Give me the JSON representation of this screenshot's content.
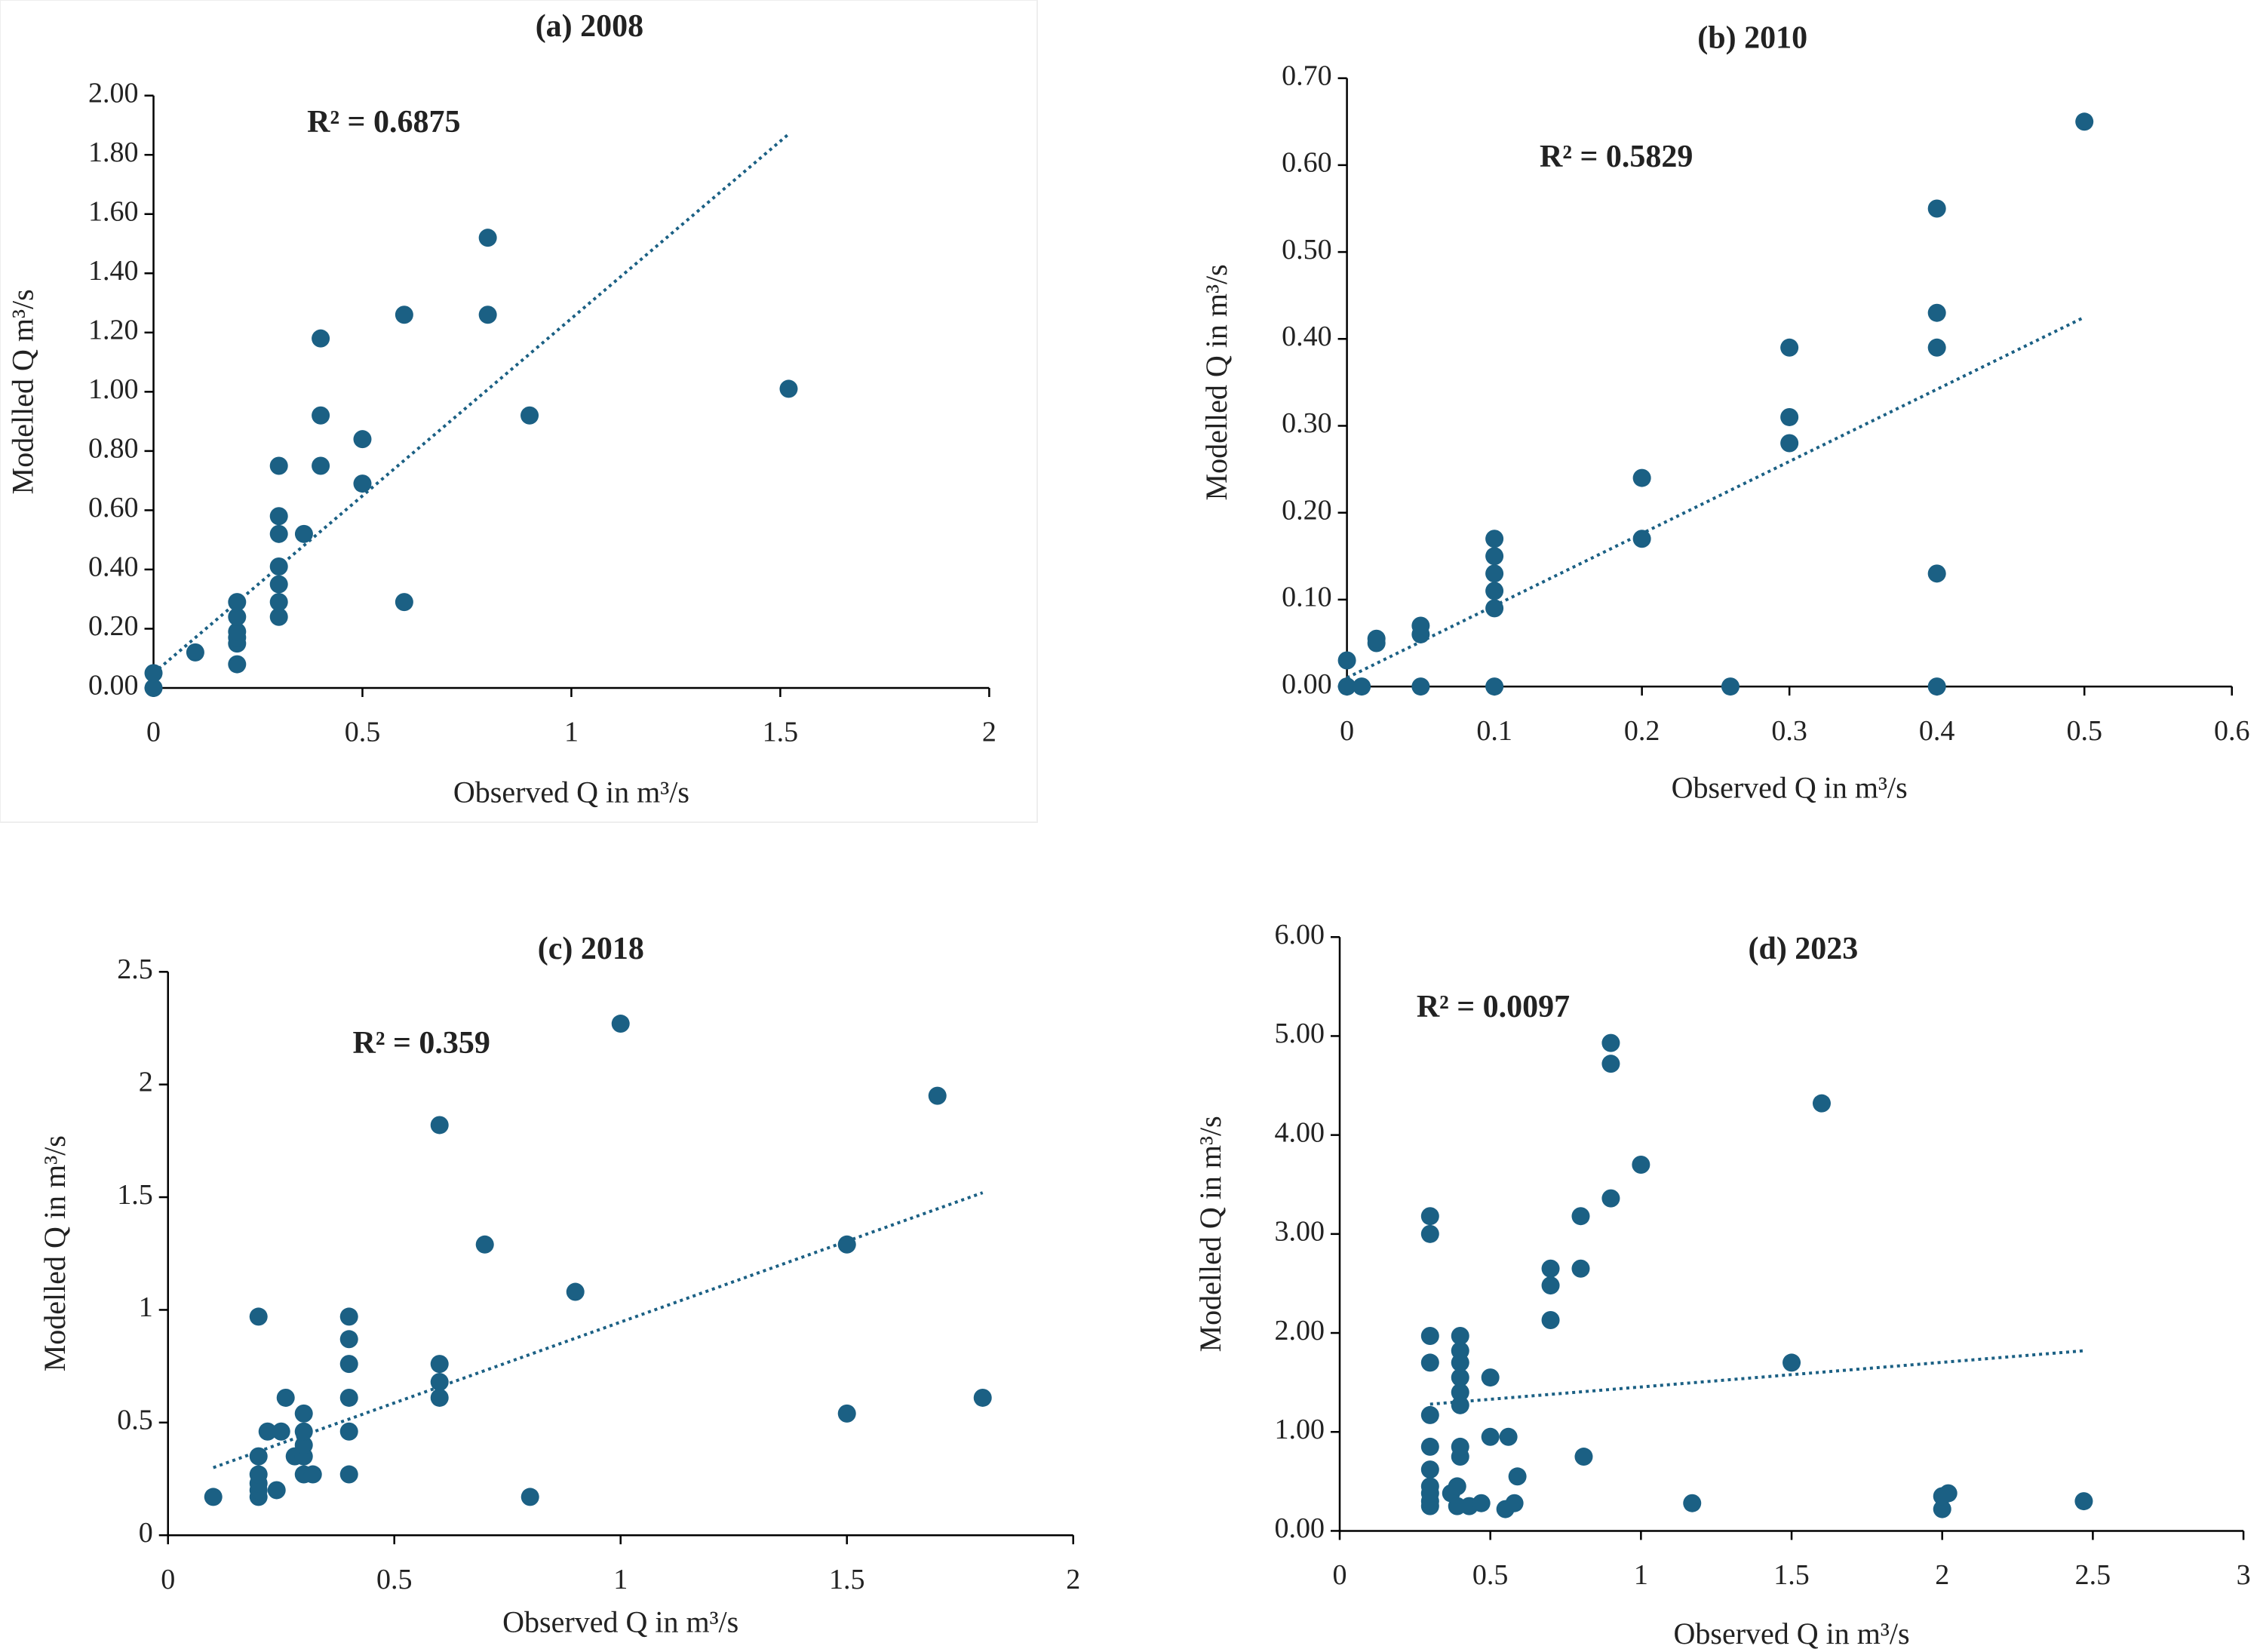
{
  "chart_data": [
    {
      "type": "scatter",
      "title": "(a) 2008",
      "annotation": "R² = 0.6875",
      "xlabel": "Observed Q in m³/s",
      "ylabel": "Modelled Q m³/s",
      "color": "#1b6084",
      "x": [
        0,
        0,
        0.1,
        0.2,
        0.2,
        0.2,
        0.2,
        0.2,
        0.2,
        0.3,
        0.3,
        0.3,
        0.3,
        0.3,
        0.3,
        0.3,
        0.36,
        0.4,
        0.4,
        0.4,
        0.5,
        0.5,
        0.6,
        0.6,
        0.8,
        0.8,
        0.9,
        1.52
      ],
      "y": [
        0,
        0.05,
        0.12,
        0.08,
        0.15,
        0.17,
        0.19,
        0.24,
        0.29,
        0.24,
        0.29,
        0.35,
        0.41,
        0.52,
        0.58,
        0.75,
        0.52,
        0.75,
        0.92,
        1.18,
        0.69,
        0.84,
        0.29,
        1.26,
        1.26,
        1.52,
        0.92,
        1.01
      ],
      "trendline": {
        "x": [
          0,
          1.52
        ],
        "y": [
          0.05,
          1.87
        ]
      },
      "xlim": [
        0,
        2
      ],
      "ylim": [
        0,
        2
      ],
      "xticks": [
        0,
        0.5,
        1,
        1.5,
        2
      ],
      "yticks": [
        {
          "value": 0,
          "label": "0.00"
        },
        {
          "value": 0.2,
          "label": "0.20"
        },
        {
          "value": 0.4,
          "label": "0.40"
        },
        {
          "value": 0.6,
          "label": "0.60"
        },
        {
          "value": 0.8,
          "label": "0.80"
        },
        {
          "value": 1,
          "label": "1.00"
        },
        {
          "value": 1.2,
          "label": "1.20"
        },
        {
          "value": 1.4,
          "label": "1.40"
        },
        {
          "value": 1.6,
          "label": "1.60"
        },
        {
          "value": 1.8,
          "label": "1.80"
        },
        {
          "value": 2,
          "label": "2.00"
        }
      ]
    },
    {
      "type": "scatter",
      "title": "(b) 2010",
      "annotation": "R² = 0.5829",
      "xlabel": "Observed Q in m³/s",
      "ylabel": "Modelled Q in m³/s",
      "color": "#1b6084",
      "x": [
        0,
        0,
        0.01,
        0.02,
        0.02,
        0.05,
        0.05,
        0.05,
        0.1,
        0.1,
        0.1,
        0.1,
        0.1,
        0.1,
        0.2,
        0.2,
        0.26,
        0.3,
        0.3,
        0.3,
        0.4,
        0.4,
        0.4,
        0.4,
        0.4,
        0.5
      ],
      "y": [
        0,
        0.03,
        0,
        0.05,
        0.055,
        0,
        0.06,
        0.07,
        0,
        0.09,
        0.11,
        0.13,
        0.15,
        0.17,
        0.17,
        0.24,
        0,
        0.28,
        0.31,
        0.39,
        0,
        0.13,
        0.39,
        0.43,
        0.55,
        0.65
      ],
      "trendline": {
        "x": [
          0,
          0.5
        ],
        "y": [
          0.01,
          0.425
        ]
      },
      "xlim": [
        0,
        0.6
      ],
      "ylim": [
        0,
        0.7
      ],
      "xticks": [
        0,
        0.1,
        0.2,
        0.3,
        0.4,
        0.5,
        0.6
      ],
      "yticks": [
        {
          "value": 0,
          "label": "0.00"
        },
        {
          "value": 0.1,
          "label": "0.10"
        },
        {
          "value": 0.2,
          "label": "0.20"
        },
        {
          "value": 0.3,
          "label": "0.30"
        },
        {
          "value": 0.4,
          "label": "0.40"
        },
        {
          "value": 0.5,
          "label": "0.50"
        },
        {
          "value": 0.6,
          "label": "0.60"
        },
        {
          "value": 0.7,
          "label": "0.70"
        }
      ]
    },
    {
      "type": "scatter",
      "title": "(c) 2018",
      "annotation": "R² = 0.359",
      "xlabel": "Observed Q in m³/s",
      "ylabel": "Modelled Q in m³/s",
      "color": "#1b6084",
      "x": [
        0.1,
        0.2,
        0.2,
        0.2,
        0.2,
        0.2,
        0.2,
        0.22,
        0.24,
        0.25,
        0.26,
        0.28,
        0.3,
        0.3,
        0.3,
        0.3,
        0.3,
        0.32,
        0.4,
        0.4,
        0.4,
        0.4,
        0.4,
        0.4,
        0.6,
        0.6,
        0.6,
        0.6,
        0.7,
        0.8,
        0.9,
        1,
        1.5,
        1.5,
        1.7,
        1.8
      ],
      "y": [
        0.17,
        0.17,
        0.2,
        0.23,
        0.27,
        0.35,
        0.97,
        0.46,
        0.2,
        0.46,
        0.61,
        0.35,
        0.27,
        0.35,
        0.4,
        0.46,
        0.54,
        0.27,
        0.27,
        0.46,
        0.61,
        0.76,
        0.87,
        0.97,
        0.61,
        0.68,
        0.76,
        1.82,
        1.29,
        0.17,
        1.08,
        2.27,
        0.54,
        1.29,
        1.95,
        0.61
      ],
      "trendline": {
        "x": [
          0.1,
          1.8
        ],
        "y": [
          0.3,
          1.52
        ]
      },
      "xlim": [
        0,
        2
      ],
      "ylim": [
        0,
        2.5
      ],
      "xticks": [
        0,
        0.5,
        1,
        1.5,
        2
      ],
      "yticks": [
        0,
        0.5,
        1,
        1.5,
        2,
        2.5
      ]
    },
    {
      "type": "scatter",
      "title": "(d) 2023",
      "annotation": "R² = 0.0097",
      "xlabel": "Observed Q in m³/s",
      "ylabel": "Modelled Q in m³/s",
      "color": "#1b6084",
      "x": [
        0.3,
        0.3,
        0.3,
        0.3,
        0.3,
        0.3,
        0.3,
        0.3,
        0.3,
        0.3,
        0.3,
        0.37,
        0.39,
        0.39,
        0.4,
        0.4,
        0.4,
        0.4,
        0.4,
        0.4,
        0.4,
        0.4,
        0.43,
        0.47,
        0.5,
        0.5,
        0.55,
        0.56,
        0.58,
        0.59,
        0.7,
        0.7,
        0.7,
        0.8,
        0.8,
        0.81,
        0.9,
        0.9,
        0.9,
        1,
        1.17,
        1.5,
        1.6,
        2,
        2,
        2.02,
        2.47
      ],
      "y": [
        0.25,
        0.3,
        0.38,
        0.45,
        0.62,
        0.85,
        1.17,
        1.7,
        1.97,
        3,
        3.18,
        0.38,
        0.25,
        0.45,
        0.75,
        0.85,
        1.27,
        1.4,
        1.55,
        1.7,
        1.82,
        1.97,
        0.25,
        0.28,
        0.95,
        1.55,
        0.22,
        0.95,
        0.28,
        0.55,
        2.13,
        2.48,
        2.65,
        2.65,
        3.18,
        0.75,
        3.36,
        4.72,
        4.93,
        3.7,
        0.28,
        1.7,
        4.32,
        0.22,
        0.35,
        0.38,
        0.3
      ],
      "trendline": {
        "x": [
          0.3,
          2.47
        ],
        "y": [
          1.28,
          1.82
        ]
      },
      "xlim": [
        0,
        3
      ],
      "ylim": [
        0,
        6
      ],
      "xticks": [
        0,
        0.5,
        1,
        1.5,
        2,
        2.5,
        3
      ],
      "yticks": [
        {
          "value": 0,
          "label": "0.00"
        },
        {
          "value": 1,
          "label": "1.00"
        },
        {
          "value": 2,
          "label": "2.00"
        },
        {
          "value": 3,
          "label": "3.00"
        },
        {
          "value": 4,
          "label": "4.00"
        },
        {
          "value": 5,
          "label": "5.00"
        },
        {
          "value": 6,
          "label": "6.00"
        }
      ]
    }
  ]
}
